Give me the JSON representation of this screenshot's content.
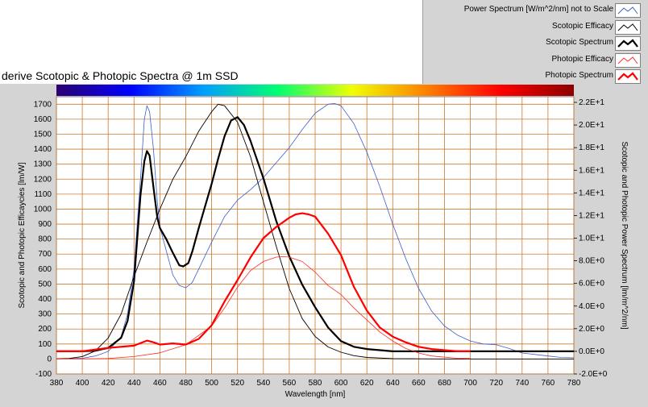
{
  "chart_data": {
    "type": "line",
    "title": "derive Scotopic & Photopic Spectra @ 1m SSD",
    "xlabel": "Wavelength [nm]",
    "ylabel": "Scotopic and Photopic Efficaycies [lm/W]",
    "ylabel_right": "Scotopic and Photopic Power Spectrum [lm/m^2/nm]",
    "xlim": [
      380,
      780
    ],
    "ylim": [
      -100,
      1750
    ],
    "ylim_right": [
      -2.0,
      22.5
    ],
    "grid": true,
    "legend_position": "top-right",
    "x_ticks": [
      "380",
      "400",
      "420",
      "440",
      "460",
      "480",
      "500",
      "520",
      "540",
      "560",
      "580",
      "600",
      "620",
      "640",
      "660",
      "680",
      "700",
      "720",
      "740",
      "760",
      "780"
    ],
    "y_ticks": [
      "-100",
      "0",
      "100",
      "200",
      "300",
      "400",
      "500",
      "600",
      "700",
      "800",
      "900",
      "1000",
      "1100",
      "1200",
      "1300",
      "1400",
      "1500",
      "1600",
      "1700"
    ],
    "y_ticks_right": [
      "-2.0E+0",
      "0.0E+0",
      "2.0E+0",
      "4.0E+0",
      "6.0E+0",
      "8.0E+0",
      "1.0E+1",
      "1.2E+1",
      "1.4E+1",
      "1.6E+1",
      "1.8E+1",
      "2.0E+1",
      "2.2E+1"
    ],
    "series": [
      {
        "name": "Power Spectrum [W/m^2/nm] not to Scale",
        "color": "#3a5fcd",
        "width": 0.8,
        "axis": "left",
        "x": [
          380,
          400,
          410,
          420,
          430,
          435,
          440,
          445,
          448,
          450,
          452,
          455,
          458,
          460,
          465,
          470,
          475,
          480,
          485,
          490,
          500,
          510,
          520,
          530,
          540,
          550,
          560,
          570,
          580,
          590,
          595,
          600,
          610,
          620,
          630,
          640,
          650,
          660,
          670,
          680,
          690,
          700,
          710,
          720,
          730,
          740,
          750,
          760,
          770,
          780
        ],
        "y": [
          0,
          5,
          20,
          50,
          150,
          300,
          600,
          1200,
          1600,
          1690,
          1650,
          1400,
          1050,
          880,
          720,
          560,
          490,
          475,
          510,
          600,
          780,
          950,
          1060,
          1130,
          1210,
          1310,
          1410,
          1530,
          1640,
          1700,
          1705,
          1690,
          1570,
          1380,
          1150,
          900,
          670,
          470,
          320,
          220,
          160,
          120,
          100,
          95,
          70,
          40,
          30,
          20,
          10,
          8
        ]
      },
      {
        "name": "Scotopic Efficacy",
        "color": "#000000",
        "width": 0.9,
        "axis": "left",
        "x": [
          380,
          390,
          400,
          410,
          420,
          430,
          440,
          450,
          460,
          470,
          480,
          490,
          500,
          505,
          510,
          520,
          530,
          540,
          550,
          560,
          570,
          580,
          590,
          600,
          610,
          620,
          640,
          660,
          680,
          700,
          720,
          740,
          760,
          780
        ],
        "y": [
          1,
          4,
          16,
          54,
          140,
          300,
          550,
          780,
          1000,
          1200,
          1350,
          1520,
          1650,
          1700,
          1690,
          1580,
          1350,
          1050,
          750,
          470,
          270,
          150,
          80,
          45,
          22,
          10,
          2,
          1,
          0,
          0,
          0,
          0,
          0,
          0
        ]
      },
      {
        "name": "Scotopic Spectrum",
        "color": "#000000",
        "width": 2.2,
        "axis": "right",
        "x": [
          380,
          400,
          410,
          420,
          430,
          435,
          440,
          445,
          448,
          450,
          452,
          455,
          458,
          460,
          465,
          470,
          475,
          478,
          482,
          485,
          490,
          500,
          505,
          510,
          515,
          520,
          525,
          530,
          540,
          550,
          560,
          570,
          580,
          590,
          600,
          610,
          620,
          630,
          640,
          650,
          660,
          680,
          700,
          720,
          740,
          760,
          780
        ],
        "y": [
          0,
          0,
          0.05,
          0.3,
          1.2,
          2.7,
          6.2,
          13.8,
          16.8,
          17.7,
          17.3,
          14.5,
          11.8,
          10.9,
          9.9,
          8.7,
          7.6,
          7.5,
          7.8,
          8.8,
          10.9,
          14.8,
          17.0,
          19.0,
          20.4,
          20.7,
          20.0,
          18.6,
          15.3,
          11.5,
          8.4,
          5.9,
          3.9,
          2.1,
          0.9,
          0.4,
          0.2,
          0.1,
          0,
          0,
          0,
          0,
          0,
          0,
          0,
          0,
          0
        ]
      },
      {
        "name": "Photopic Efficacy",
        "color": "#ff2a2a",
        "width": 0.8,
        "axis": "left",
        "x": [
          380,
          400,
          420,
          440,
          460,
          480,
          500,
          510,
          520,
          530,
          540,
          550,
          555,
          560,
          570,
          580,
          590,
          600,
          610,
          620,
          630,
          640,
          650,
          660,
          670,
          680,
          690,
          700
        ],
        "y": [
          0,
          0.3,
          3,
          16,
          41,
          95,
          220,
          340,
          480,
          590,
          650,
          680,
          683,
          680,
          650,
          580,
          490,
          430,
          340,
          260,
          180,
          120,
          70,
          40,
          20,
          12,
          5,
          3
        ]
      },
      {
        "name": "Photopic Spectrum",
        "color": "#ff0000",
        "width": 2.2,
        "axis": "right",
        "x": [
          380,
          400,
          420,
          440,
          450,
          455,
          460,
          470,
          480,
          490,
          500,
          510,
          520,
          530,
          540,
          550,
          555,
          560,
          565,
          570,
          575,
          580,
          590,
          600,
          610,
          620,
          630,
          640,
          650,
          660,
          670,
          680,
          690,
          700
        ],
        "y": [
          0,
          0,
          0.3,
          0.5,
          0.95,
          0.8,
          0.6,
          0.7,
          0.6,
          1.1,
          2.3,
          4.4,
          6.3,
          8.3,
          10.0,
          11.0,
          11.4,
          11.8,
          12.1,
          12.2,
          12.1,
          11.9,
          10.4,
          8.5,
          5.7,
          3.6,
          2.1,
          1.3,
          0.8,
          0.4,
          0.2,
          0.1,
          0,
          0
        ]
      }
    ]
  },
  "spectrum_bar_colors": [
    "#2b006f",
    "#0000ff",
    "#00a0ff",
    "#00ff70",
    "#f0ff00",
    "#ff8000",
    "#ff0000",
    "#8b0000"
  ]
}
